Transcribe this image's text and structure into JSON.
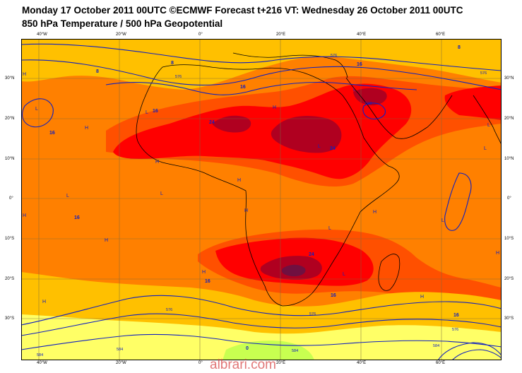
{
  "header": {
    "title_line1": "Monday 17 October 2011 00UTC ©ECMWF Forecast t+216 VT: Wednesday 26 October 2011 00UTC",
    "title_line2": "850 hPa Temperature / 500 hPa Geopotential"
  },
  "axes": {
    "lon_labels": [
      "40°W",
      "20°W",
      "0°",
      "20°E",
      "40°E",
      "60°E"
    ],
    "lat_labels": [
      "30°N",
      "20°N",
      "10°N",
      "0°",
      "10°S",
      "20°S",
      "30°S"
    ]
  },
  "contour_labels": {
    "temperature": [
      "8",
      "8",
      "8",
      "16",
      "16",
      "16",
      "16",
      "16",
      "16",
      "16",
      "16",
      "24",
      "24",
      "24",
      "0"
    ],
    "geopotential": [
      "576",
      "576",
      "576",
      "576",
      "576",
      "584",
      "584",
      "584",
      "584",
      "576",
      "588"
    ]
  },
  "pressure_centers": {
    "highs": [
      "H",
      "H",
      "H",
      "H",
      "H",
      "H",
      "H",
      "H",
      "H",
      "H",
      "H",
      "H",
      "H",
      "H"
    ],
    "lows": [
      "L",
      "L",
      "L",
      "L",
      "L",
      "L",
      "L",
      "L",
      "L",
      "L",
      "L"
    ]
  },
  "colors": {
    "t_0_8": "#ffff66",
    "t_8_16": "#ffc000",
    "t_16_20": "#ff8000",
    "t_20_24": "#ff5000",
    "t_24_28": "#ff0000",
    "t_28_32": "#b00020",
    "t_32": "#701040",
    "cold": "#c8ff50",
    "geopotential_contour": "#1020c0",
    "coastline": "#000000"
  },
  "watermark": "albrari.com"
}
